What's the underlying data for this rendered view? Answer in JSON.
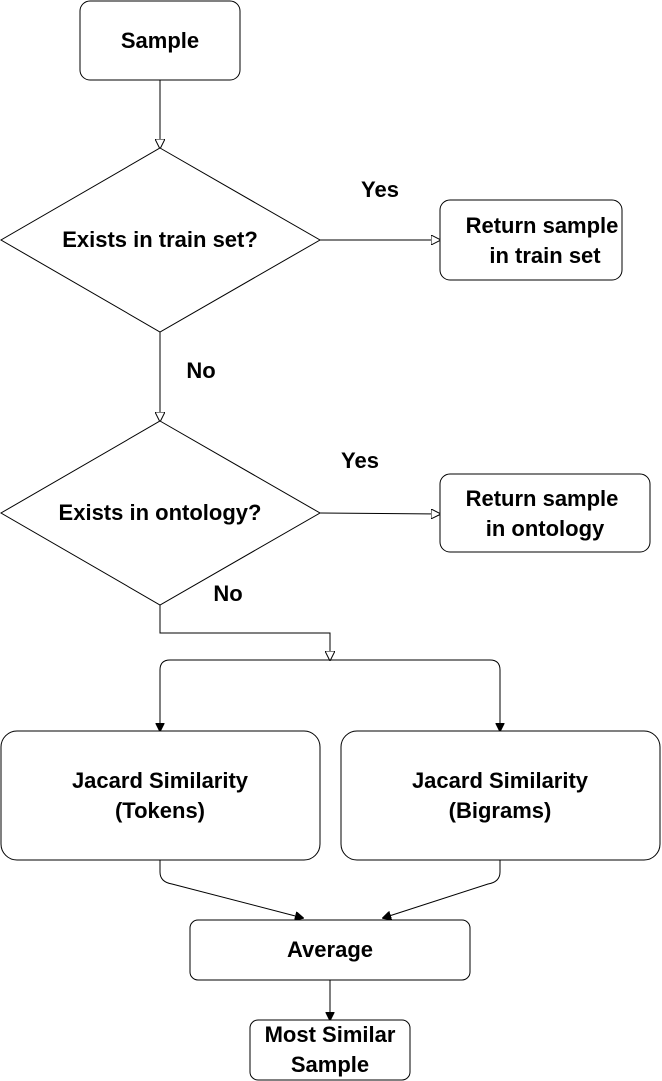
{
  "nodes": {
    "sample": {
      "label": "Sample"
    },
    "train_check": {
      "label": "Exists in train set?"
    },
    "return_train": {
      "lines": [
        "Return sample",
        "in train set"
      ]
    },
    "ontology_check": {
      "label": "Exists in ontology?"
    },
    "return_ontology": {
      "lines": [
        "Return sample",
        "in ontology"
      ]
    },
    "jacard_tokens": {
      "lines": [
        "Jacard Similarity",
        "(Tokens)"
      ]
    },
    "jacard_bigrams": {
      "lines": [
        "Jacard Similarity",
        "(Bigrams)"
      ]
    },
    "average": {
      "label": "Average"
    },
    "most_similar": {
      "lines": [
        "Most Similar",
        "Sample"
      ]
    }
  },
  "edge_labels": {
    "train_yes": "Yes",
    "train_no": "No",
    "ontology_yes": "Yes",
    "ontology_no": "No"
  }
}
